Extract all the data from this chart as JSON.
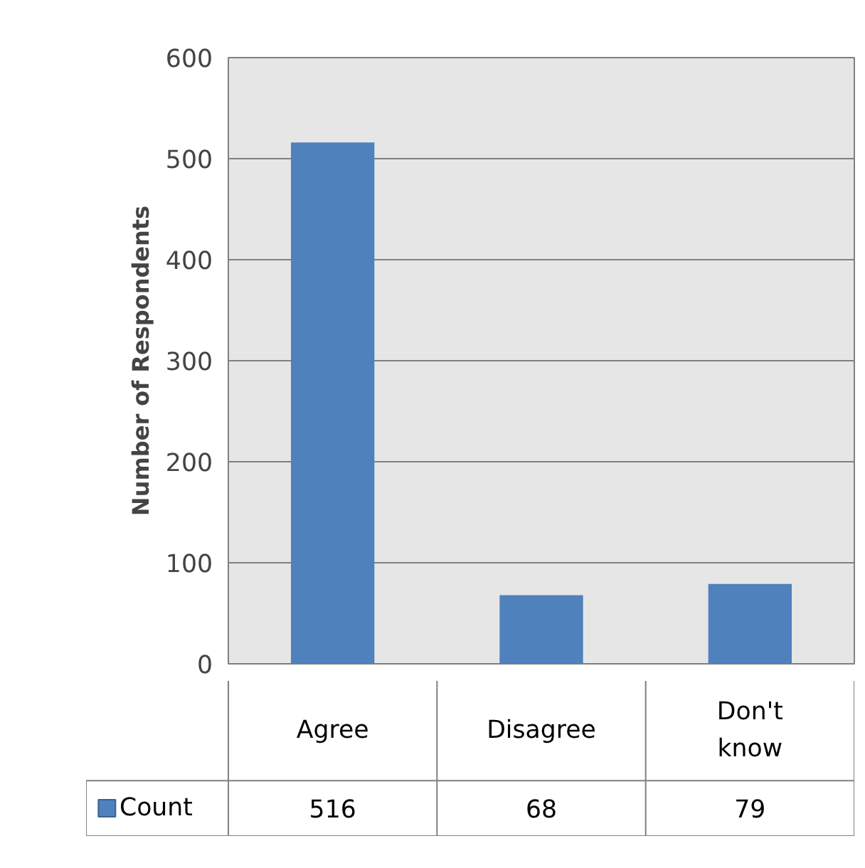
{
  "chart_data": {
    "type": "bar",
    "ylabel": "Number of Respondents",
    "categories": [
      "Agree",
      "Disagree",
      "Don't know"
    ],
    "series": [
      {
        "name": "Count",
        "color": "#4f81bd",
        "values": [
          516,
          68,
          79
        ],
        "value_labels": [
          "516",
          "68",
          "79"
        ]
      }
    ],
    "ylim": [
      0,
      600
    ],
    "yticks": [
      0,
      100,
      200,
      300,
      400,
      500,
      600
    ],
    "grid": "y",
    "legend": "bottom"
  }
}
